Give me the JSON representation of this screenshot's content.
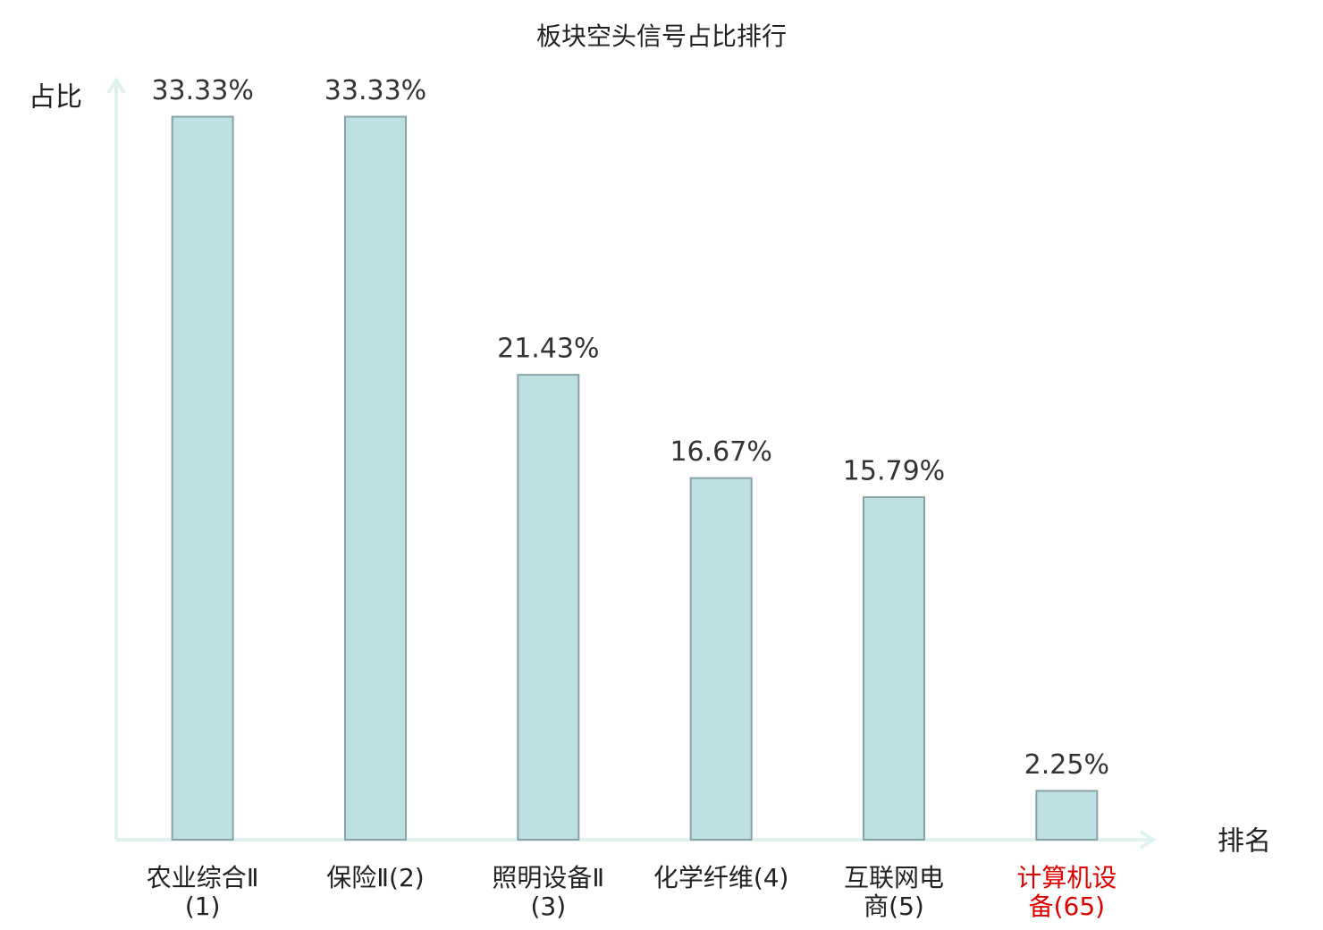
{
  "chart_data": {
    "type": "bar",
    "title": "板块空头信号占比排行",
    "y_label": "占比",
    "x_label": "排名",
    "categories": [
      "农业综合Ⅱ(1)",
      "保险Ⅱ(2)",
      "照明设备Ⅱ(3)",
      "化学纤维(4)",
      "互联网电商(5)",
      "计算机设备(65)"
    ],
    "category_colors": [
      "#222222",
      "#222222",
      "#222222",
      "#222222",
      "#222222",
      "#e00000"
    ],
    "values": [
      33.33,
      33.33,
      21.43,
      16.67,
      15.79,
      2.25
    ],
    "value_labels": [
      "33.33%",
      "33.33%",
      "21.43%",
      "16.67%",
      "15.79%",
      "2.25%"
    ],
    "color": "#bde0e3",
    "edge_color": "#86a4a7",
    "axis_color": "#dff2ef",
    "ylim": [
      0,
      35
    ]
  }
}
